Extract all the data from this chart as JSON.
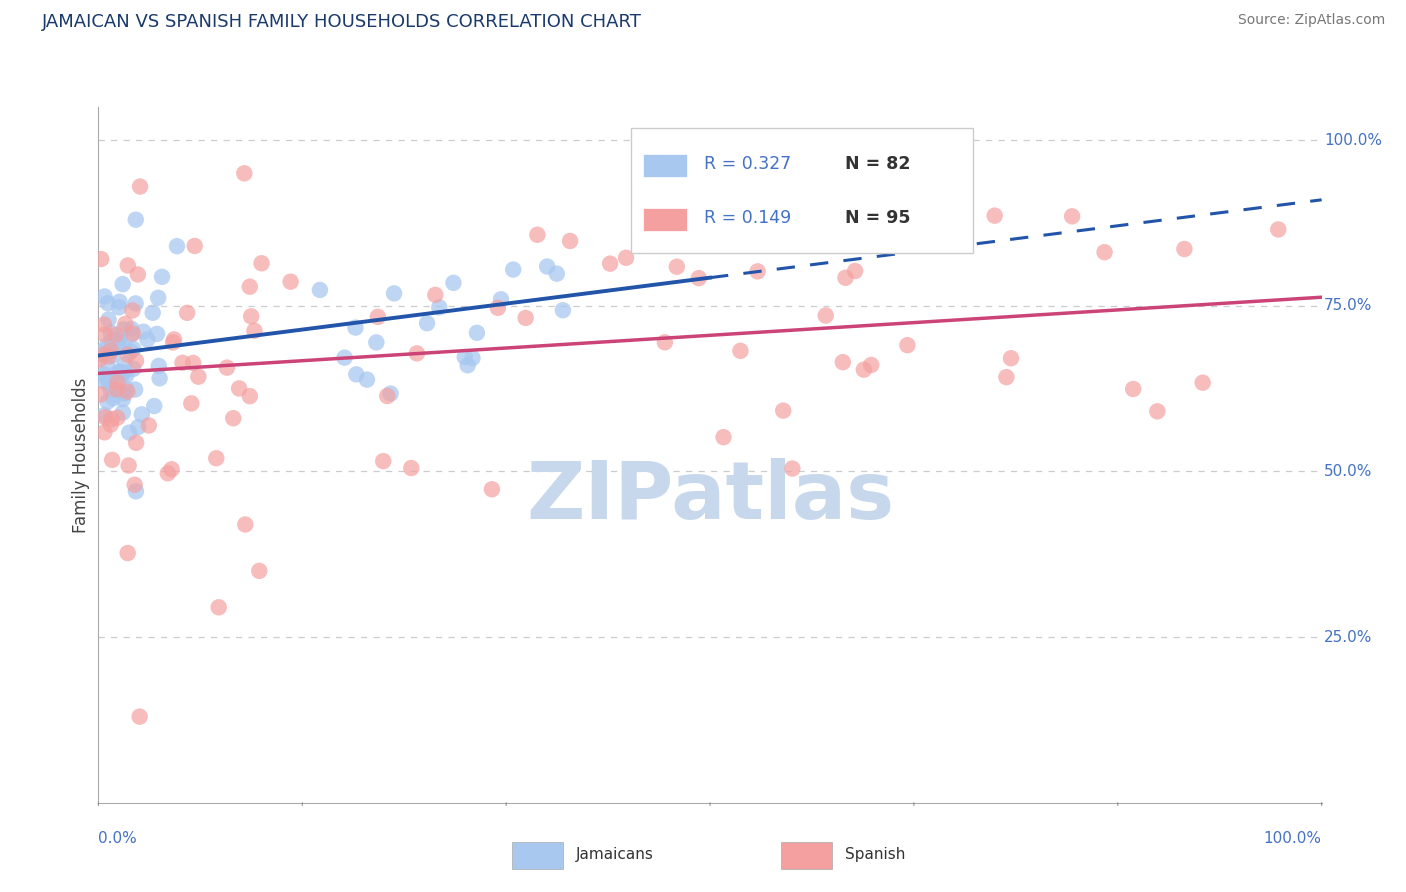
{
  "title": "JAMAICAN VS SPANISH FAMILY HOUSEHOLDS CORRELATION CHART",
  "source": "Source: ZipAtlas.com",
  "ylabel": "Family Households",
  "color_jamaican": "#A8C8F0",
  "color_spanish": "#F4A0A0",
  "color_title": "#1a3a6b",
  "color_axis_label": "#4472C4",
  "color_trend_blue": "#2255AA",
  "color_trend_pink": "#CC4477",
  "color_grid": "#CCCCCC",
  "color_legend_text_r": "#4472C4",
  "color_legend_text_n": "#333333",
  "watermark_color": "#C8D8EC",
  "background": "#FFFFFF"
}
